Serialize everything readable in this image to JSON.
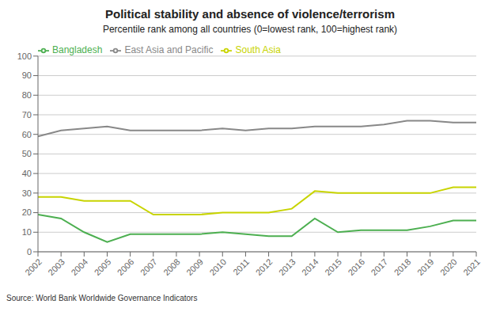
{
  "chart_data": {
    "type": "line",
    "title": "Political stability and absence of violence/terrorism",
    "subtitle": "Percentile rank among all countries (0=lowest rank, 100=highest rank)",
    "annotations": [
      "Source: World Bank Worldwide Governance Indicators"
    ],
    "x": [
      2002,
      2003,
      2004,
      2005,
      2006,
      2007,
      2008,
      2009,
      2010,
      2011,
      2012,
      2013,
      2014,
      2015,
      2016,
      2017,
      2018,
      2019,
      2020,
      2021
    ],
    "series": [
      {
        "name": "Bangladesh",
        "color": "#4caf50",
        "values": [
          19,
          17,
          10,
          5,
          9,
          9,
          9,
          9,
          10,
          9,
          8,
          8,
          17,
          10,
          11,
          11,
          11,
          13,
          16,
          16
        ]
      },
      {
        "name": "South Asia",
        "color": "#c8d400",
        "values": [
          28,
          28,
          26,
          26,
          26,
          19,
          19,
          19,
          20,
          20,
          20,
          22,
          31,
          30,
          30,
          30,
          30,
          30,
          33,
          33
        ]
      },
      {
        "name": "East Asia and Pacific",
        "color": "#888888",
        "values": [
          59,
          62,
          63,
          64,
          62,
          62,
          62,
          62,
          63,
          62,
          63,
          63,
          64,
          64,
          64,
          65,
          67,
          67,
          66,
          66
        ]
      }
    ],
    "xlim": [
      2002,
      2021
    ],
    "xticks": [
      2002,
      2003,
      2004,
      2005,
      2006,
      2007,
      2008,
      2009,
      2010,
      2011,
      2012,
      2013,
      2014,
      2015,
      2016,
      2017,
      2018,
      2019,
      2020,
      2021
    ],
    "ylim": [
      0,
      100
    ],
    "yticks": [
      0,
      10,
      20,
      30,
      40,
      50,
      60,
      70,
      80,
      90,
      100
    ],
    "grid": true,
    "legend": "upper left"
  }
}
